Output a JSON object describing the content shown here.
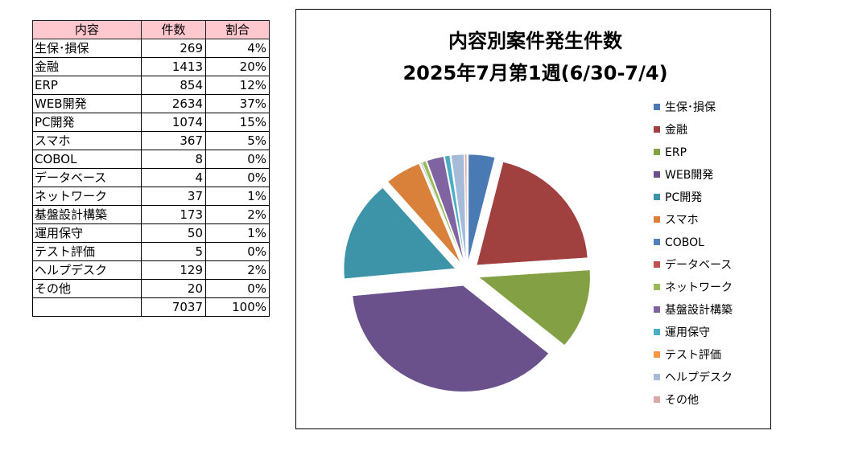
{
  "table": {
    "headers": [
      "内容",
      "件数",
      "割合"
    ],
    "rows": [
      {
        "category": "生保･損保",
        "count": "269",
        "ratio": "4%"
      },
      {
        "category": "金融",
        "count": "1413",
        "ratio": "20%"
      },
      {
        "category": "ERP",
        "count": "854",
        "ratio": "12%"
      },
      {
        "category": "WEB開発",
        "count": "2634",
        "ratio": "37%"
      },
      {
        "category": "PC開発",
        "count": "1074",
        "ratio": "15%"
      },
      {
        "category": "スマホ",
        "count": "367",
        "ratio": "5%"
      },
      {
        "category": "COBOL",
        "count": "8",
        "ratio": "0%"
      },
      {
        "category": "データベース",
        "count": "4",
        "ratio": "0%"
      },
      {
        "category": "ネットワーク",
        "count": "37",
        "ratio": "1%"
      },
      {
        "category": "基盤設計構築",
        "count": "173",
        "ratio": "2%"
      },
      {
        "category": "運用保守",
        "count": "50",
        "ratio": "1%"
      },
      {
        "category": "テスト評価",
        "count": "5",
        "ratio": "0%"
      },
      {
        "category": "ヘルプデスク",
        "count": "129",
        "ratio": "2%"
      },
      {
        "category": "その他",
        "count": "20",
        "ratio": "0%"
      }
    ],
    "total": {
      "count": "7037",
      "ratio": "100%"
    }
  },
  "chart_data": {
    "type": "pie",
    "title_lines": [
      "内容別案件発生件数",
      "2025年7月第1週(6/30-7/4)"
    ],
    "legend_position": "right",
    "exploded": true,
    "categories": [
      "生保･損保",
      "金融",
      "ERP",
      "WEB開発",
      "PC開発",
      "スマホ",
      "COBOL",
      "データベース",
      "ネットワーク",
      "基盤設計構築",
      "運用保守",
      "テスト評価",
      "ヘルプデスク",
      "その他"
    ],
    "values": [
      269,
      1413,
      854,
      2634,
      1074,
      367,
      8,
      4,
      37,
      173,
      50,
      5,
      129,
      20
    ],
    "colors": [
      "#4a7ab4",
      "#a0413f",
      "#83a045",
      "#6a518c",
      "#3d93a8",
      "#d9803a",
      "#4f81bd",
      "#c0504d",
      "#9bbb59",
      "#8064a2",
      "#4bacc6",
      "#f79646",
      "#a5bbd9",
      "#dfa8a7"
    ]
  }
}
